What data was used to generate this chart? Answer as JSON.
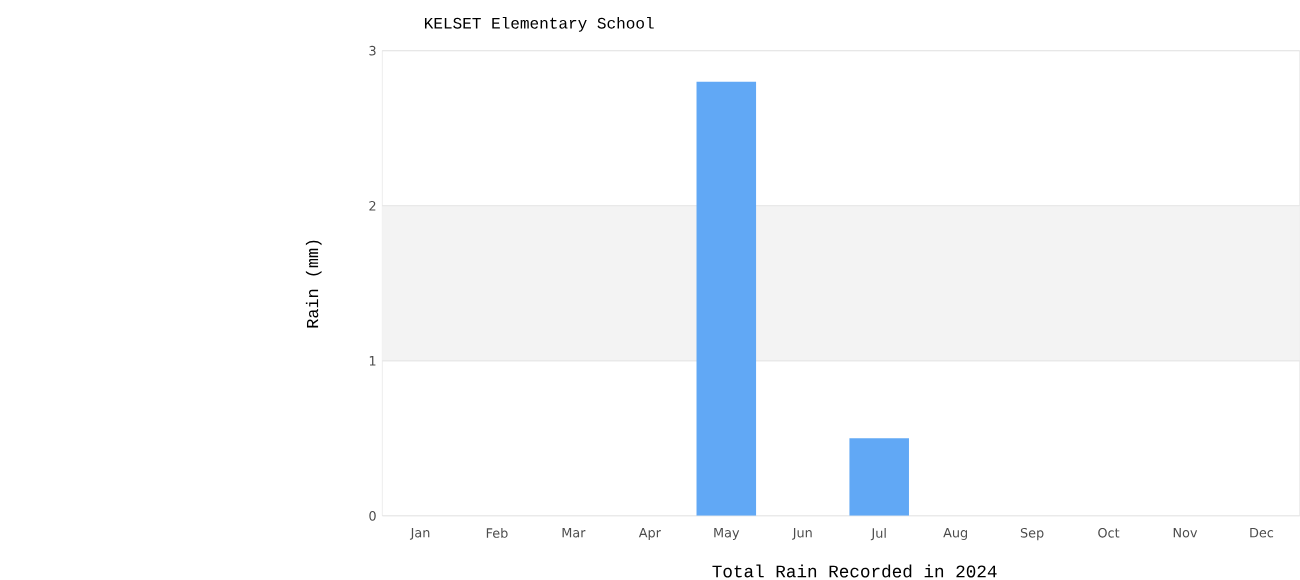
{
  "chart_data": {
    "type": "bar",
    "title": "KELSET Elementary School",
    "xlabel": "Total Rain Recorded in 2024",
    "ylabel": "Rain (mm)",
    "categories": [
      "Jan",
      "Feb",
      "Mar",
      "Apr",
      "May",
      "Jun",
      "Jul",
      "Aug",
      "Sep",
      "Oct",
      "Nov",
      "Dec"
    ],
    "values": [
      0,
      0,
      0,
      0,
      2.8,
      0,
      0.5,
      0,
      0,
      0,
      0,
      0
    ],
    "color": "#61a8f5",
    "ylim": [
      0,
      3
    ],
    "yticks": [
      0,
      1,
      2,
      3
    ],
    "grid": "y",
    "bands": [
      {
        "axis": "y",
        "from": 1,
        "to": 2,
        "color": "#f3f3f3"
      }
    ]
  }
}
